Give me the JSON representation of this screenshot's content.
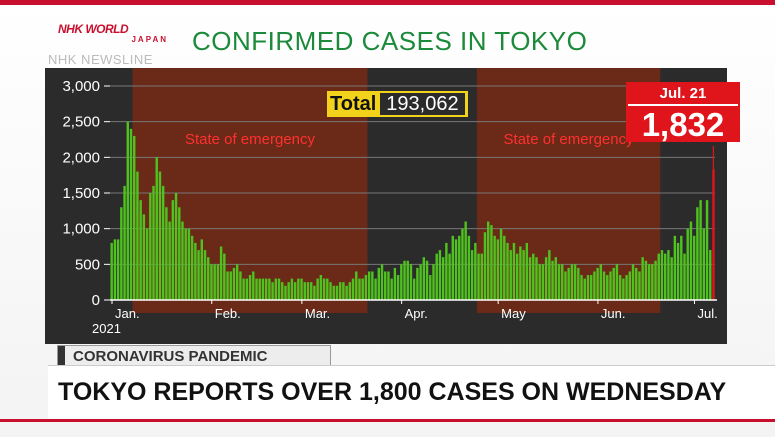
{
  "broadcaster": {
    "logo_line1": "NHK WORLD",
    "logo_line2": "JAPAN",
    "newsline": "NHK NEWSLINE"
  },
  "chart_title": "CONFIRMED CASES IN TOKYO",
  "total": {
    "label": "Total",
    "value": "193,062"
  },
  "callout": {
    "date": "Jul. 21",
    "value": "1,832"
  },
  "year_label": "2021",
  "banner": {
    "category": "CORONAVIRUS PANDEMIC",
    "headline": "TOKYO REPORTS OVER 1,800 CASES ON WEDNESDAY"
  },
  "colors": {
    "bar": "#4fc21f",
    "highlight": "#e0141b",
    "emergency": "#6b2a17",
    "panel": "#2b2b2b",
    "title": "#1b8a3a",
    "total_box": "#f2d21a"
  },
  "chart_data": {
    "type": "bar",
    "title": "CONFIRMED CASES IN TOKYO",
    "xlabel": "2021",
    "ylabel": "",
    "ylim": [
      0,
      3000
    ],
    "yticks": [
      "0",
      "500",
      "1,000",
      "1,500",
      "2,000",
      "2,500",
      "3,000"
    ],
    "month_labels": [
      "Jan.",
      "Feb.",
      "Mar.",
      "Apr.",
      "May",
      "Jun.",
      "Jul."
    ],
    "x_start": "2021-01-01",
    "values": [
      800,
      850,
      850,
      1300,
      1600,
      2500,
      2400,
      2300,
      1800,
      1400,
      1200,
      1000,
      1500,
      1600,
      2000,
      1800,
      1600,
      1300,
      1100,
      1400,
      1500,
      1300,
      1100,
      1000,
      1000,
      900,
      800,
      700,
      850,
      700,
      600,
      500,
      500,
      500,
      750,
      650,
      400,
      400,
      450,
      500,
      400,
      300,
      300,
      350,
      400,
      300,
      300,
      300,
      300,
      300,
      250,
      300,
      300,
      250,
      200,
      250,
      300,
      250,
      300,
      300,
      250,
      250,
      250,
      200,
      300,
      350,
      300,
      300,
      250,
      200,
      200,
      250,
      250,
      200,
      250,
      300,
      400,
      300,
      300,
      350,
      400,
      400,
      300,
      450,
      500,
      400,
      400,
      300,
      450,
      350,
      500,
      550,
      550,
      500,
      300,
      450,
      500,
      600,
      550,
      350,
      500,
      650,
      700,
      600,
      800,
      650,
      900,
      850,
      900,
      1000,
      1100,
      900,
      700,
      800,
      650,
      650,
      950,
      1100,
      1050,
      900,
      850,
      1000,
      900,
      800,
      700,
      800,
      650,
      750,
      700,
      800,
      600,
      650,
      600,
      500,
      500,
      600,
      700,
      550,
      600,
      500,
      500,
      400,
      450,
      500,
      500,
      450,
      350,
      300,
      350,
      350,
      400,
      450,
      500,
      400,
      350,
      400,
      450,
      500,
      350,
      300,
      350,
      400,
      500,
      450,
      400,
      600,
      550,
      500,
      500,
      550,
      650,
      700,
      650,
      700,
      600,
      900,
      800,
      900,
      650,
      1000,
      1100,
      900,
      1300,
      1400,
      1000,
      1400,
      700,
      1832
    ],
    "highlight": {
      "date": "Jul. 21",
      "value": 1832
    },
    "emergency_periods": [
      {
        "start": "2021-01-08",
        "end": "2021-03-21",
        "label": "State of emergency"
      },
      {
        "start": "2021-04-25",
        "end": "2021-06-20",
        "label": "State of emergency"
      },
      {
        "start": "2021-07-12",
        "end": "2021-07-21",
        "label": ""
      }
    ],
    "total": 193062
  }
}
